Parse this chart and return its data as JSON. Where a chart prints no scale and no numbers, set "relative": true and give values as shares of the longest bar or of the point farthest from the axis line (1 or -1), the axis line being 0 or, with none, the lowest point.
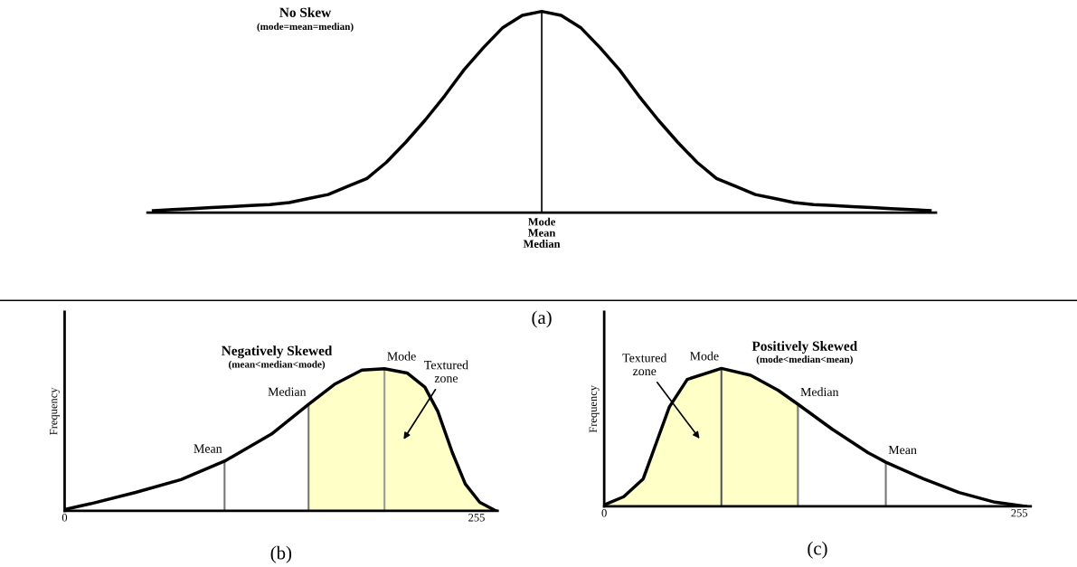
{
  "chart_data": [
    {
      "type": "line",
      "relative": true,
      "title": "No Skew",
      "subtitle": "(mode=mean=median)",
      "xlabel": "Mode\nMean\nMedian",
      "categories": [
        null,
        null,
        null,
        null,
        null,
        null,
        null,
        null,
        null,
        null,
        null,
        null,
        null,
        null,
        null,
        null,
        null,
        null,
        null,
        null,
        null,
        null,
        null,
        null,
        null,
        null,
        null,
        null,
        null,
        null,
        null,
        null,
        null,
        null,
        null,
        null,
        null,
        null,
        null,
        null,
        null
      ],
      "series": [
        {
          "color": "#000000",
          "values": [
            0.01,
            0.015,
            0.02,
            0.025,
            0.03,
            0.035,
            0.04,
            0.05,
            0.07,
            0.09,
            0.13,
            0.17,
            0.25,
            0.35,
            0.46,
            0.58,
            0.71,
            0.82,
            0.92,
            0.98,
            1.0,
            0.98,
            0.92,
            0.82,
            0.71,
            0.58,
            0.46,
            0.35,
            0.25,
            0.17,
            0.13,
            0.09,
            0.07,
            0.05,
            0.04,
            0.035,
            0.03,
            0.025,
            0.02,
            0.015,
            0.01
          ]
        }
      ],
      "annotations": [
        "(a)"
      ]
    },
    {
      "type": "line",
      "relative": true,
      "title": "Negatively Skewed",
      "subtitle": "(mean<median<mode)",
      "ylabel": "Frequency",
      "x": [
        0,
        16,
        44,
        72,
        99,
        128,
        151,
        167,
        184,
        198,
        212,
        223,
        231,
        240,
        248,
        257,
        267
      ],
      "xlim": [
        0,
        268
      ],
      "xticks": [
        0,
        255
      ],
      "series": [
        {
          "color": "#000000",
          "values": [
            0.01,
            0.05,
            0.13,
            0.22,
            0.35,
            0.54,
            0.75,
            0.89,
            0.99,
            1.0,
            0.97,
            0.87,
            0.7,
            0.41,
            0.19,
            0.06,
            0.0
          ]
        },
        {
          "type": "area",
          "color": "#ffffc8",
          "x": [
            151,
            167,
            184,
            198,
            212,
            223,
            231,
            240,
            248,
            257,
            267
          ],
          "values": [
            0.75,
            0.89,
            0.99,
            1.0,
            0.97,
            0.87,
            0.7,
            0.41,
            0.19,
            0.06,
            0.0
          ]
        }
      ],
      "ref_lines": [
        {
          "axis": "x",
          "value": 99,
          "label": "Mean",
          "color": "#777777"
        },
        {
          "axis": "x",
          "value": 151,
          "label": "Median",
          "color": "#777777"
        },
        {
          "axis": "x",
          "value": 198,
          "label": "Mode",
          "color": "#999999"
        }
      ],
      "annotations": [
        "Textured\nzone",
        "(b)"
      ]
    },
    {
      "type": "line",
      "relative": true,
      "title": "Positively Skewed",
      "subtitle": "(mode<median<mean)",
      "ylabel": "Frequency",
      "x": [
        0,
        12,
        24,
        32,
        40,
        51,
        72,
        90,
        107,
        119,
        140,
        162,
        173,
        196,
        218,
        240,
        259
      ],
      "xlim": [
        0,
        262
      ],
      "xticks": [
        0,
        255
      ],
      "series": [
        {
          "color": "#000000",
          "values": [
            0.01,
            0.07,
            0.2,
            0.46,
            0.72,
            0.92,
            1.0,
            0.95,
            0.84,
            0.74,
            0.56,
            0.39,
            0.32,
            0.2,
            0.1,
            0.03,
            0.0
          ]
        },
        {
          "type": "area",
          "color": "#ffffc8",
          "x": [
            0,
            12,
            24,
            32,
            40,
            51,
            72,
            90,
            107,
            119
          ],
          "values": [
            0.01,
            0.07,
            0.2,
            0.46,
            0.72,
            0.92,
            1.0,
            0.95,
            0.84,
            0.74
          ]
        }
      ],
      "ref_lines": [
        {
          "axis": "x",
          "value": 72,
          "label": "Mode",
          "color": "#555555"
        },
        {
          "axis": "x",
          "value": 119,
          "label": "Median",
          "color": "#777777"
        },
        {
          "axis": "x",
          "value": 173,
          "label": "Mean",
          "color": "#777777"
        }
      ],
      "annotations": [
        "Textured\nzone",
        "(c)"
      ]
    }
  ]
}
